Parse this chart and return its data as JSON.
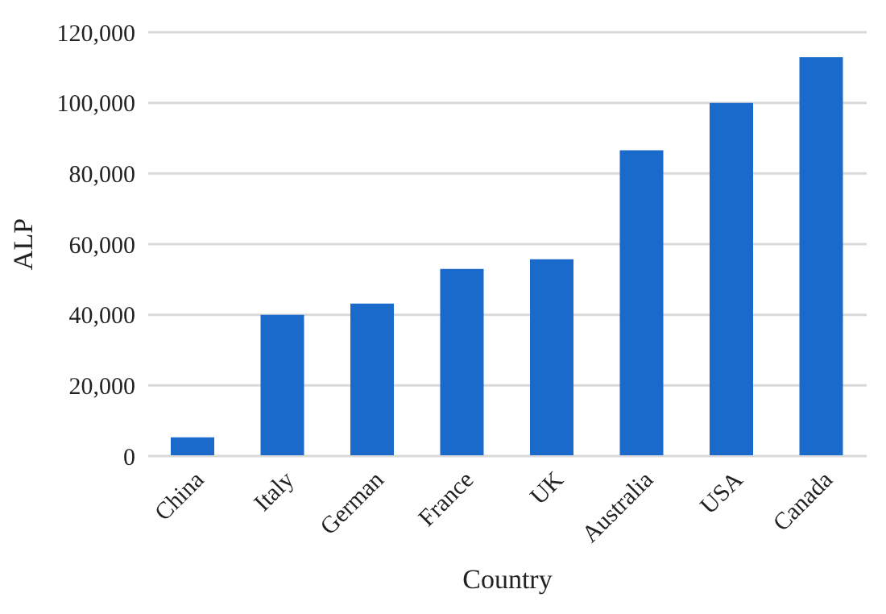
{
  "chart_data": {
    "type": "bar",
    "xlabel": "Country",
    "ylabel": "ALP",
    "categories": [
      "China",
      "Italy",
      "German",
      "France",
      "UK",
      "Australia",
      "USA",
      "Canada"
    ],
    "values": [
      5300,
      40000,
      43200,
      53000,
      55700,
      86600,
      100000,
      112900
    ],
    "color": "#1a6acb",
    "ylim": [
      0,
      120000
    ],
    "yticks": [
      0,
      {
        "value": 20000,
        "label": "20,000"
      },
      {
        "value": 40000,
        "label": "40,000"
      },
      {
        "value": 60000,
        "label": "60,000"
      },
      {
        "value": 80000,
        "label": "80,000"
      },
      {
        "value": 100000,
        "label": "100,000"
      },
      {
        "value": 120000,
        "label": "120,000"
      }
    ],
    "grid": "y"
  }
}
